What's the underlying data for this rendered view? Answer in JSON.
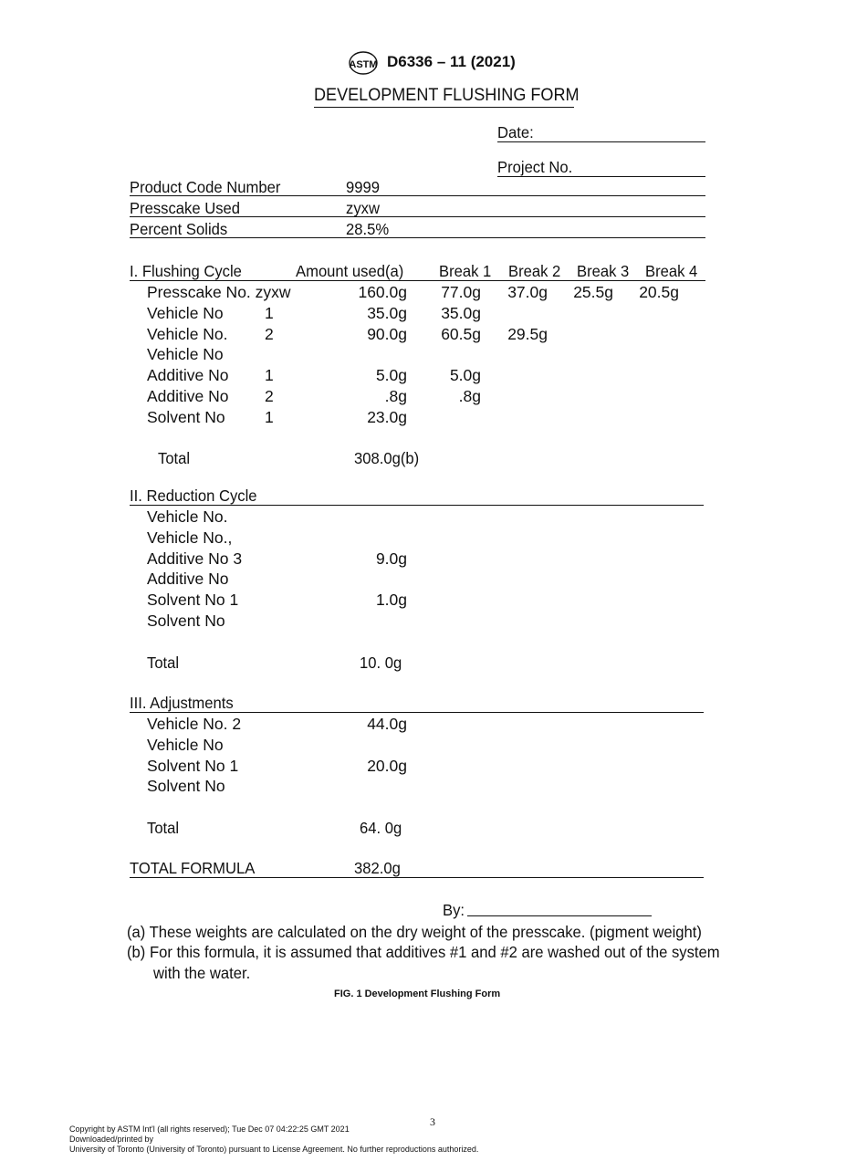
{
  "header": {
    "logo_text": "ASTM",
    "designation": "D6336 – 11 (2021)"
  },
  "title": "DEVELOPMENT FLUSHING FORM",
  "fields": {
    "date_label": "Date:",
    "project_label": "Project No.",
    "product_code_label": "Product Code Number",
    "product_code_value": "9999",
    "presscake_label": "Presscake Used",
    "presscake_value": "zyxw",
    "percent_solids_label": "Percent Solids",
    "percent_solids_value": "28.5%"
  },
  "flushing": {
    "heading": "I. Flushing Cycle",
    "columns": [
      "Amount used(a)",
      "Break 1",
      "Break 2",
      "Break 3",
      "Break 4"
    ],
    "rows": [
      {
        "label": "Presscake No. zyxw",
        "num": "",
        "amount": "160.0g",
        "breaks": [
          "77.0g",
          "37.0g",
          "25.5g",
          "20.5g"
        ]
      },
      {
        "label": "Vehicle No",
        "num": "1",
        "amount": "35.0g",
        "breaks": [
          "35.0g",
          "",
          "",
          ""
        ]
      },
      {
        "label": "Vehicle No.",
        "num": "2",
        "amount": "90.0g",
        "breaks": [
          "60.5g",
          "29.5g",
          "",
          ""
        ]
      },
      {
        "label": "Vehicle No",
        "num": "",
        "amount": "",
        "breaks": [
          "",
          "",
          "",
          ""
        ]
      },
      {
        "label": "Additive No",
        "num": "1",
        "amount": "5.0g",
        "breaks": [
          "5.0g",
          "",
          "",
          ""
        ]
      },
      {
        "label": "Additive No",
        "num": "2",
        "amount": ".8g",
        "breaks": [
          ".8g",
          "",
          "",
          ""
        ]
      },
      {
        "label": "Solvent No",
        "num": "1",
        "amount": "23.0g",
        "breaks": [
          "",
          "",
          "",
          ""
        ]
      }
    ],
    "total_label": "Total",
    "total_value": "308.0g(b)"
  },
  "reduction": {
    "heading": "II. Reduction Cycle",
    "rows": [
      {
        "label": "Vehicle No.",
        "amount": ""
      },
      {
        "label": "Vehicle No.,",
        "amount": ""
      },
      {
        "label": "Additive No  3",
        "amount": "9.0g"
      },
      {
        "label": "Additive No",
        "amount": ""
      },
      {
        "label": "Solvent No  1",
        "amount": "1.0g"
      },
      {
        "label": "Solvent No",
        "amount": ""
      }
    ],
    "total_label": "Total",
    "total_value": "10. 0g"
  },
  "adjustments": {
    "heading": "III. Adjustments",
    "rows": [
      {
        "label": "Vehicle No. 2",
        "amount": "44.0g"
      },
      {
        "label": "Vehicle No",
        "amount": ""
      },
      {
        "label": "Solvent No  1",
        "amount": "20.0g"
      },
      {
        "label": "Solvent No",
        "amount": ""
      }
    ],
    "total_label": "Total",
    "total_value": "64. 0g"
  },
  "total_formula": {
    "label": "TOTAL FORMULA",
    "value": "382.0g"
  },
  "by_label": "By:",
  "notes": [
    "(a) These weights are calculated on the dry weight of the presscake. (pigment weight)",
    "(b) For this formula, it is assumed that additives #1 and #2 are washed out of the system",
    "with the water."
  ],
  "caption": "FIG. 1 Development Flushing Form",
  "page_number": "3",
  "footer": [
    "Copyright by ASTM Int'l (all rights reserved); Tue Dec 07 04:22:25 GMT 2021",
    "Downloaded/printed by",
    "University of Toronto (University of Toronto) pursuant to License Agreement. No further reproductions authorized."
  ]
}
